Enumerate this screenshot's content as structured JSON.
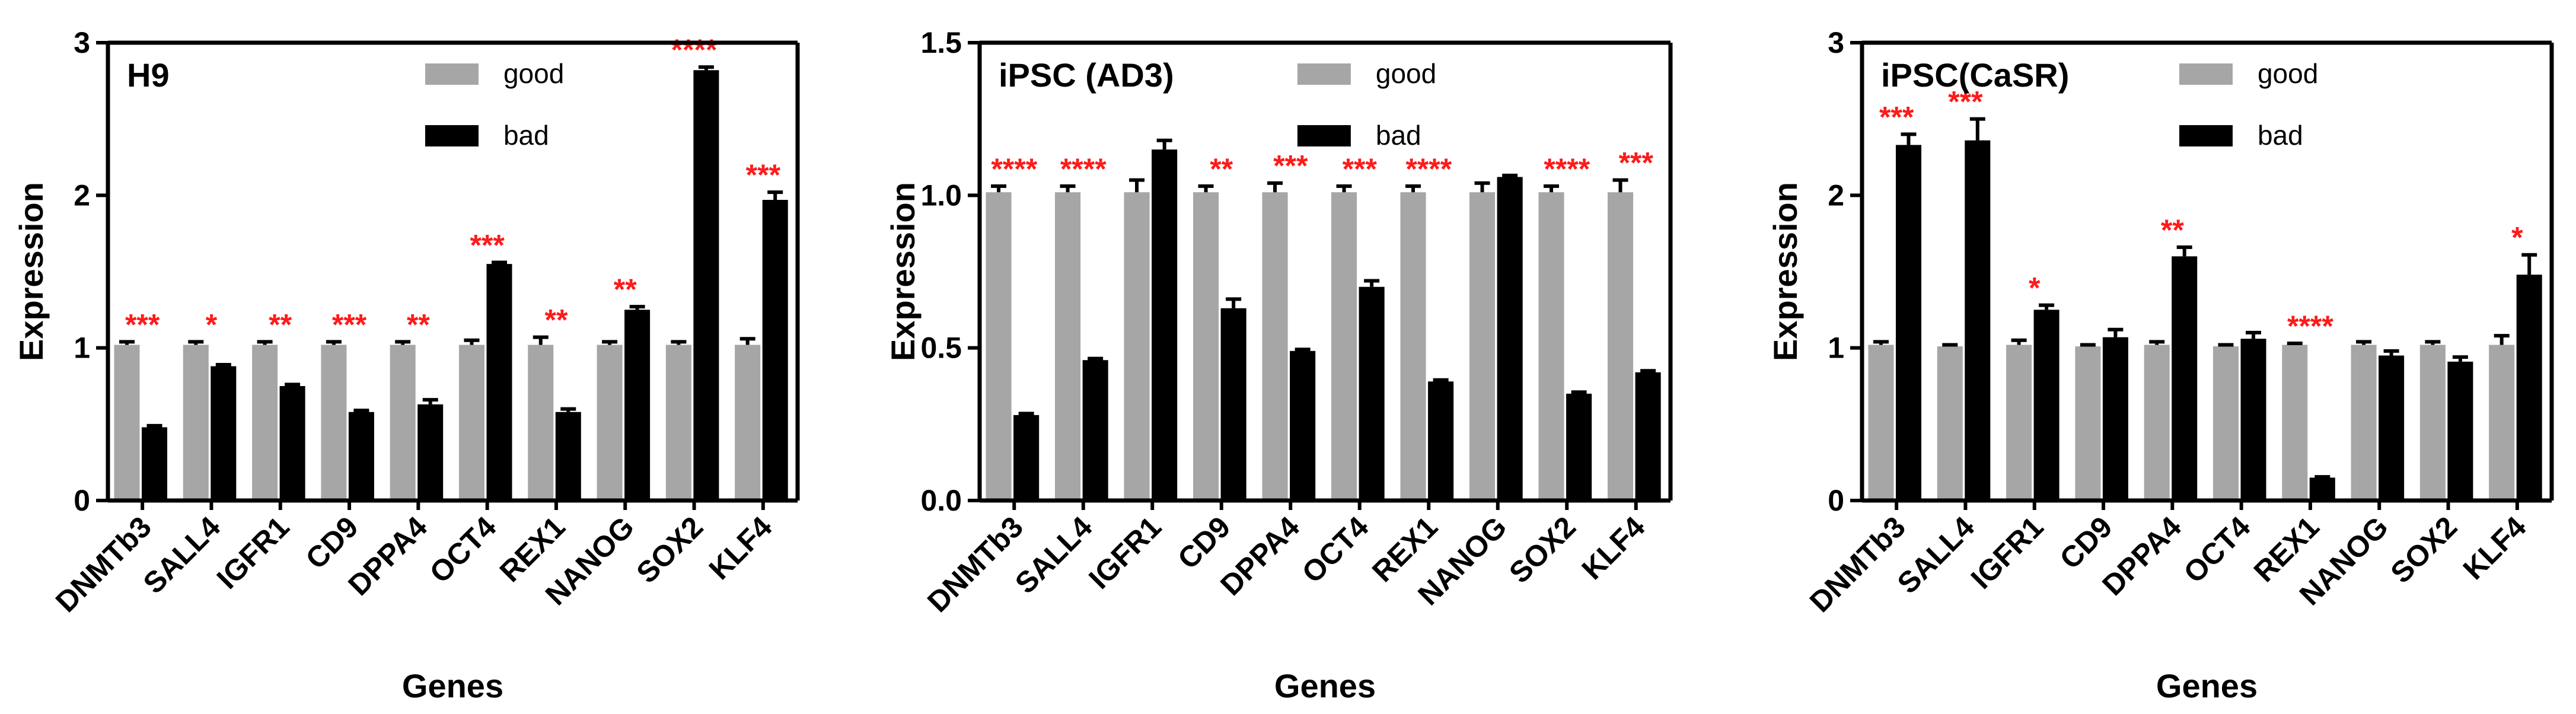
{
  "chart_data": [
    {
      "type": "bar",
      "title": "H9",
      "xlabel": "Genes",
      "ylabel": "Expression",
      "ylim": [
        0,
        3
      ],
      "yticks": [
        0,
        1,
        2,
        3
      ],
      "ytick_labels": [
        "0",
        "1",
        "2",
        "3"
      ],
      "categories": [
        "DNMTb3",
        "SALL4",
        "IGFR1",
        "CD9",
        "DPPA4",
        "OCT4",
        "REX1",
        "NANOG",
        "SOX2",
        "KLF4"
      ],
      "series": [
        {
          "name": "good",
          "color": "#a6a6a6",
          "values": [
            1.02,
            1.02,
            1.02,
            1.02,
            1.02,
            1.02,
            1.02,
            1.02,
            1.02,
            1.02
          ],
          "errors": [
            0.02,
            0.02,
            0.02,
            0.02,
            0.02,
            0.03,
            0.05,
            0.02,
            0.02,
            0.04
          ]
        },
        {
          "name": "bad",
          "color": "#000000",
          "values": [
            0.48,
            0.88,
            0.75,
            0.58,
            0.63,
            1.55,
            0.58,
            1.25,
            2.82,
            1.97
          ],
          "errors": [
            0.01,
            0.01,
            0.01,
            0.01,
            0.03,
            0.01,
            0.02,
            0.02,
            0.02,
            0.05
          ]
        }
      ],
      "significance": [
        "***",
        "*",
        "**",
        "***",
        "**",
        "***",
        "**",
        "**",
        "****",
        "***"
      ],
      "legend_position": "top-center"
    },
    {
      "type": "bar",
      "title": "iPSC (AD3)",
      "xlabel": "Genes",
      "ylabel": "Expression",
      "ylim": [
        0,
        1.5
      ],
      "yticks": [
        0,
        0.5,
        1.0,
        1.5
      ],
      "ytick_labels": [
        "0.0",
        "0.5",
        "1.0",
        "1.5"
      ],
      "categories": [
        "DNMTb3",
        "SALL4",
        "IGFR1",
        "CD9",
        "DPPA4",
        "OCT4",
        "REX1",
        "NANOG",
        "SOX2",
        "KLF4"
      ],
      "series": [
        {
          "name": "good",
          "color": "#a6a6a6",
          "values": [
            1.01,
            1.01,
            1.01,
            1.01,
            1.01,
            1.01,
            1.01,
            1.01,
            1.01,
            1.01
          ],
          "errors": [
            0.02,
            0.02,
            0.04,
            0.02,
            0.03,
            0.02,
            0.02,
            0.03,
            0.02,
            0.04
          ]
        },
        {
          "name": "bad",
          "color": "#000000",
          "values": [
            0.28,
            0.46,
            1.15,
            0.63,
            0.49,
            0.7,
            0.39,
            1.06,
            0.35,
            0.42
          ],
          "errors": [
            0.005,
            0.005,
            0.03,
            0.03,
            0.005,
            0.02,
            0.005,
            0.005,
            0.005,
            0.005
          ]
        }
      ],
      "significance": [
        "****",
        "****",
        "",
        "**",
        "***",
        "***",
        "****",
        "",
        "****",
        "***"
      ],
      "legend_position": "top-center"
    },
    {
      "type": "bar",
      "title": "iPSC(CaSR)",
      "xlabel": "Genes",
      "ylabel": "Expression",
      "ylim": [
        0,
        3
      ],
      "yticks": [
        0,
        1,
        2,
        3
      ],
      "ytick_labels": [
        "0",
        "1",
        "2",
        "3"
      ],
      "categories": [
        "DNMTb3",
        "SALL4",
        "IGFR1",
        "CD9",
        "DPPA4",
        "OCT4",
        "REX1",
        "NANOG",
        "SOX2",
        "KLF4"
      ],
      "series": [
        {
          "name": "good",
          "color": "#a6a6a6",
          "values": [
            1.02,
            1.01,
            1.02,
            1.01,
            1.02,
            1.01,
            1.02,
            1.02,
            1.02,
            1.02
          ],
          "errors": [
            0.02,
            0.01,
            0.03,
            0.01,
            0.02,
            0.01,
            0.01,
            0.02,
            0.02,
            0.06
          ]
        },
        {
          "name": "bad",
          "color": "#000000",
          "values": [
            2.33,
            2.36,
            1.25,
            1.07,
            1.6,
            1.06,
            0.15,
            0.95,
            0.91,
            1.48
          ],
          "errors": [
            0.07,
            0.14,
            0.03,
            0.05,
            0.06,
            0.04,
            0.005,
            0.03,
            0.03,
            0.13
          ]
        }
      ],
      "significance": [
        "***",
        "***",
        "*",
        "",
        "**",
        "",
        "****",
        "",
        "",
        "*"
      ],
      "legend_position": "top-center"
    }
  ]
}
